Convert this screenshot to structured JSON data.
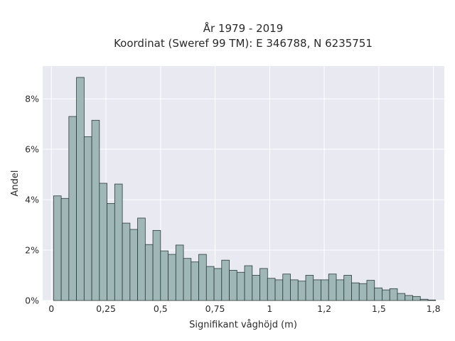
{
  "chart_data": {
    "type": "bar",
    "title_lines": [
      "År 1979 - 2019",
      "Koordinat (Sweref 99 TM): E 346788, N 6235751"
    ],
    "xlabel": "Signifikant våghöjd (m)",
    "ylabel": "Andel",
    "xlim": [
      -0.04,
      1.8
    ],
    "ylim": [
      0,
      9.3
    ],
    "x_ticks": [
      {
        "value": 0,
        "label": "0"
      },
      {
        "value": 0.25,
        "label": "0,25"
      },
      {
        "value": 0.5,
        "label": "0,5"
      },
      {
        "value": 0.75,
        "label": "0,75"
      },
      {
        "value": 1.0,
        "label": "1"
      },
      {
        "value": 1.25,
        "label": "1,2"
      },
      {
        "value": 1.5,
        "label": "1,5"
      },
      {
        "value": 1.75,
        "label": "1,8"
      }
    ],
    "y_ticks": [
      {
        "value": 0,
        "label": "0%"
      },
      {
        "value": 2,
        "label": "2%"
      },
      {
        "value": 4,
        "label": "4%"
      },
      {
        "value": 6,
        "label": "6%"
      },
      {
        "value": 8,
        "label": "8%"
      }
    ],
    "bin_start": 0.01,
    "bin_width": 0.035,
    "values": [
      4.15,
      4.05,
      7.3,
      8.85,
      6.5,
      7.15,
      4.65,
      3.85,
      4.62,
      3.07,
      2.82,
      3.27,
      2.22,
      2.78,
      1.97,
      1.83,
      2.2,
      1.67,
      1.53,
      1.83,
      1.35,
      1.27,
      1.6,
      1.2,
      1.12,
      1.38,
      1.0,
      1.27,
      0.88,
      0.82,
      1.05,
      0.82,
      0.77,
      1.0,
      0.82,
      0.82,
      1.05,
      0.82,
      1.0,
      0.7,
      0.67,
      0.8,
      0.5,
      0.42,
      0.47,
      0.28,
      0.2,
      0.16,
      0.05,
      0.02
    ],
    "unit": "%",
    "grid": true,
    "colors": {
      "plot_background": "#e8e9f1",
      "bar_fill": "#9fb7b6",
      "bar_edge": "#2c3b3a",
      "grid": "#ffffff"
    }
  }
}
